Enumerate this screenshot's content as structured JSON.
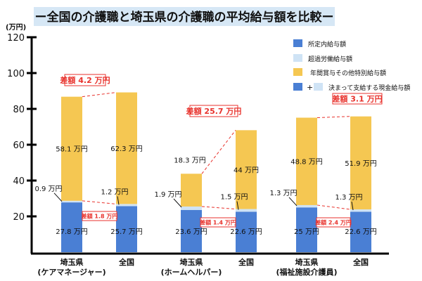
{
  "chart_data": {
    "type": "bar",
    "stacked": true,
    "title": "ー全国の介護職と埼玉県の介護職の平均給与額を比較ー",
    "ylabel": "(万円)",
    "ylim": [
      0,
      120
    ],
    "yticks": [
      20,
      40,
      60,
      80,
      100,
      120
    ],
    "grid": false,
    "legend_position": "top-right",
    "unit": "万円",
    "categories": [
      {
        "line1": "埼玉県",
        "line2": "(ケアマネージャー)"
      },
      {
        "line1": "全国",
        "line2": ""
      },
      {
        "line1": "埼玉県",
        "line2": "(ホームヘルパー)"
      },
      {
        "line1": "全国",
        "line2": ""
      },
      {
        "line1": "埼玉県",
        "line2": "(福祉施設介護員)"
      },
      {
        "line1": "全国",
        "line2": ""
      }
    ],
    "series": [
      {
        "name": "所定内給与額",
        "color": "#4a7fd4",
        "values": [
          27.8,
          25.7,
          23.6,
          22.6,
          25,
          22.6
        ]
      },
      {
        "name": "超過労働給与額",
        "color": "#cfe3f5",
        "values": [
          0.9,
          1.2,
          1.9,
          1.5,
          1.3,
          1.3
        ]
      },
      {
        "name": "年間賞与その他特別給与額",
        "color": "#f5c752",
        "values": [
          58.1,
          62.3,
          18.3,
          44,
          48.8,
          51.9
        ]
      }
    ],
    "series_labels": [
      [
        "27.8 万円",
        "25.7 万円",
        "23.6 万円",
        "22.6 万円",
        "25 万円",
        "22.6 万円"
      ],
      [
        "0.9 万円",
        "1.2 万円",
        "1.9 万円",
        "1.5 万円",
        "1.3 万円",
        "1.3 万円"
      ],
      [
        "58.1 万円",
        "62.3 万円",
        "18.3 万円",
        "44 万円",
        "48.8 万円",
        "51.9 万円"
      ]
    ],
    "combined_legend": {
      "plus": "+",
      "label": "決まって支給する現金給与額"
    },
    "differences": [
      {
        "pair": 0,
        "kind": "total",
        "label": "差額 4.2 万円"
      },
      {
        "pair": 0,
        "kind": "base",
        "label": "差額 1.8 万円"
      },
      {
        "pair": 1,
        "kind": "total",
        "label": "差額 25.7 万円"
      },
      {
        "pair": 1,
        "kind": "base",
        "label": "差額 1.4 万円"
      },
      {
        "pair": 2,
        "kind": "total",
        "label": "差額 3.1 万円"
      },
      {
        "pair": 2,
        "kind": "base",
        "label": "差額 2.4 万円"
      }
    ],
    "accent_color": "#e8322c",
    "title_bg": "#d6e7f5"
  }
}
